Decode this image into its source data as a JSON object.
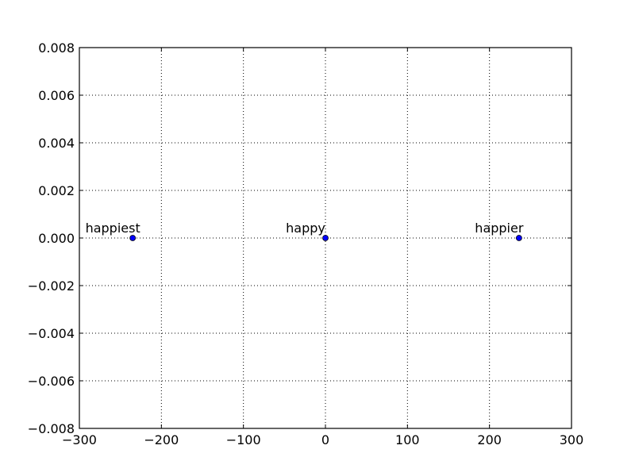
{
  "chart_data": {
    "type": "scatter",
    "title": "",
    "xlabel": "",
    "ylabel": "",
    "xlim": [
      -300,
      300
    ],
    "ylim": [
      -0.008,
      0.008
    ],
    "xticks": [
      -300,
      -200,
      -100,
      0,
      100,
      200,
      300
    ],
    "xtick_labels": [
      "−300",
      "−200",
      "−100",
      "0",
      "100",
      "200",
      "300"
    ],
    "yticks": [
      0.008,
      0.006,
      0.004,
      0.002,
      0.0,
      -0.002,
      -0.004,
      -0.006,
      -0.008
    ],
    "ytick_labels": [
      "0.008",
      "0.006",
      "0.004",
      "0.002",
      "0.000",
      "−0.002",
      "−0.004",
      "−0.006",
      "−0.008"
    ],
    "grid": true,
    "marker_color": "#0000ff",
    "points": [
      {
        "x": -235,
        "y": 0.0,
        "label": "happiest"
      },
      {
        "x": 0,
        "y": 0.0,
        "label": "happy"
      },
      {
        "x": 236,
        "y": 0.0,
        "label": "happier"
      }
    ]
  }
}
